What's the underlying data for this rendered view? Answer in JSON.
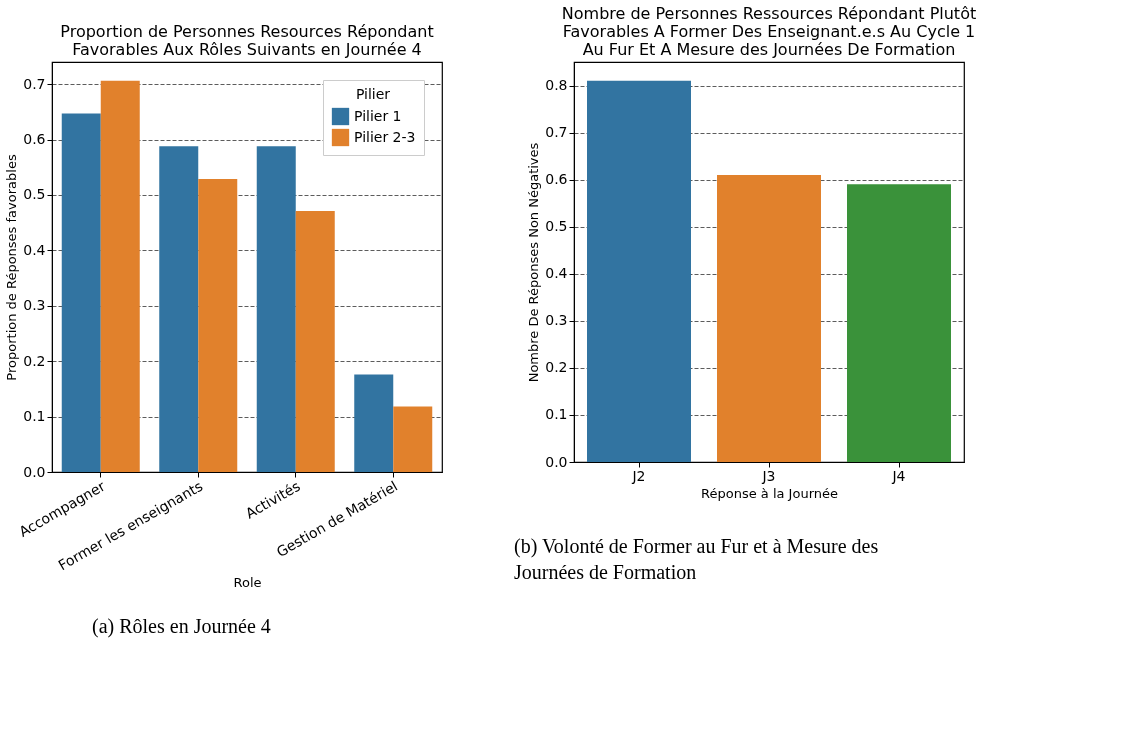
{
  "chart_data": [
    {
      "type": "bar",
      "title": "Proportion de Personnes Resources Répondant\nFavorables Aux Rôles Suivants en Journée 4",
      "xlabel": "Role",
      "ylabel": "Proportion de Réponses favorables",
      "legend_title": "Pilier",
      "legend": "top right",
      "grid": "y",
      "categories": [
        "Accompagner",
        "Former les enseignants",
        "Activités",
        "Gestion de Matériel"
      ],
      "series": [
        {
          "name": "Pilier 1",
          "color": "#3274a1",
          "values": [
            0.647,
            0.588,
            0.588,
            0.176
          ]
        },
        {
          "name": "Pilier 2-3",
          "color": "#e1812c",
          "values": [
            0.706,
            0.529,
            0.471,
            0.118
          ]
        }
      ],
      "ylim": [
        0,
        0.74
      ],
      "yticks": [
        {
          "value": 0,
          "label": "0.0"
        },
        0.1,
        0.2,
        0.3,
        0.4,
        0.5,
        0.6,
        0.7
      ],
      "annotations": [
        "(a) Rôles en Journée 4"
      ]
    },
    {
      "type": "bar",
      "title": "Nombre de Personnes Ressources Répondant Plutôt\nFavorables A Former Des Enseignant.e.s Au Cycle 1\nAu Fur Et A Mesure des Journées De Formation",
      "xlabel": "Réponse à la Journée",
      "ylabel": "Nombre De Réponses Non Négatives",
      "grid": "y",
      "categories": [
        "J2",
        "J3",
        "J4"
      ],
      "values": [
        0.81,
        0.61,
        0.59
      ],
      "colors": [
        "#3274a1",
        "#e1812c",
        "#3a923a"
      ],
      "ylim": [
        0,
        0.85
      ],
      "yticks": [
        {
          "value": 0,
          "label": "0.0"
        },
        0.1,
        0.2,
        0.3,
        0.4,
        0.5,
        0.6,
        0.7,
        0.8
      ],
      "annotations": [
        "(b) Volonté de Former au Fur et à Mesure des\nJournées de Formation"
      ]
    }
  ]
}
